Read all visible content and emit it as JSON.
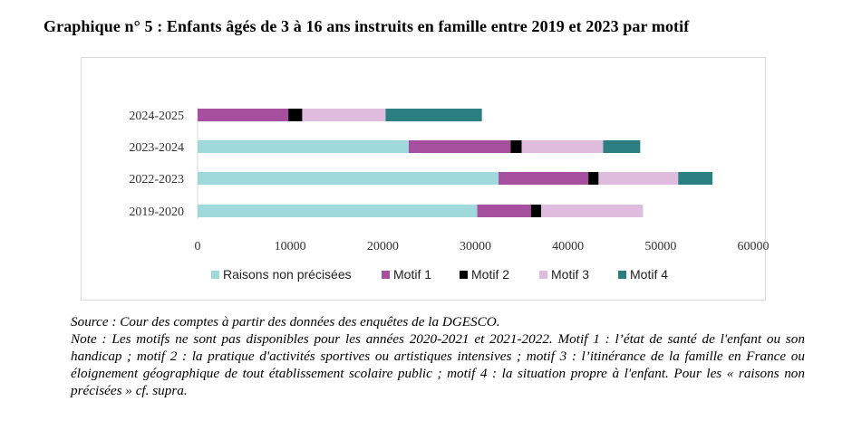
{
  "title": "Graphique n° 5 :  Enfants âgés de 3 à 16 ans instruits en famille entre 2019 et 2023 par motif",
  "chart_data": {
    "type": "bar",
    "orientation": "horizontal",
    "stacked": true,
    "categories": [
      "2024-2025",
      "2023-2024",
      "2022-2023",
      "2019-2020"
    ],
    "series": [
      {
        "name": "Raisons non précisées",
        "color": "#9fd9dc",
        "values": [
          0,
          22800,
          32500,
          30200
        ]
      },
      {
        "name": "Motif 1",
        "color": "#a54f9e",
        "values": [
          9800,
          11000,
          9700,
          5800
        ]
      },
      {
        "name": "Motif 2",
        "color": "#000000",
        "values": [
          1500,
          1200,
          1100,
          1100
        ]
      },
      {
        "name": "Motif 3",
        "color": "#dfbcdd",
        "values": [
          9000,
          8800,
          8600,
          11000
        ]
      },
      {
        "name": "Motif 4",
        "color": "#2b7f83",
        "values": [
          10400,
          4000,
          3700,
          0
        ]
      }
    ],
    "xlim": [
      0,
      60000
    ],
    "xticks": [
      "0",
      "10000",
      "20000",
      "30000",
      "40000",
      "50000",
      "60000"
    ],
    "xlabel": "",
    "ylabel": "",
    "grid": false,
    "legend": "bottom"
  },
  "notes": {
    "source": "Source : Cour des comptes à partir des données des enquêtes de la DGESCO.",
    "note": "Note : Les motifs ne sont pas disponibles pour les années 2020-2021 et 2021-2022. Motif 1 : l’état de santé de l'enfant ou son handicap ; motif 2 : la pratique d'activités sportives ou artistiques intensives ; motif 3 : l’itinérance de la famille en France ou éloignement géographique de tout établissement scolaire public ; motif 4 : la situation propre à l'enfant. Pour les « raisons non précisées » cf. supra."
  }
}
